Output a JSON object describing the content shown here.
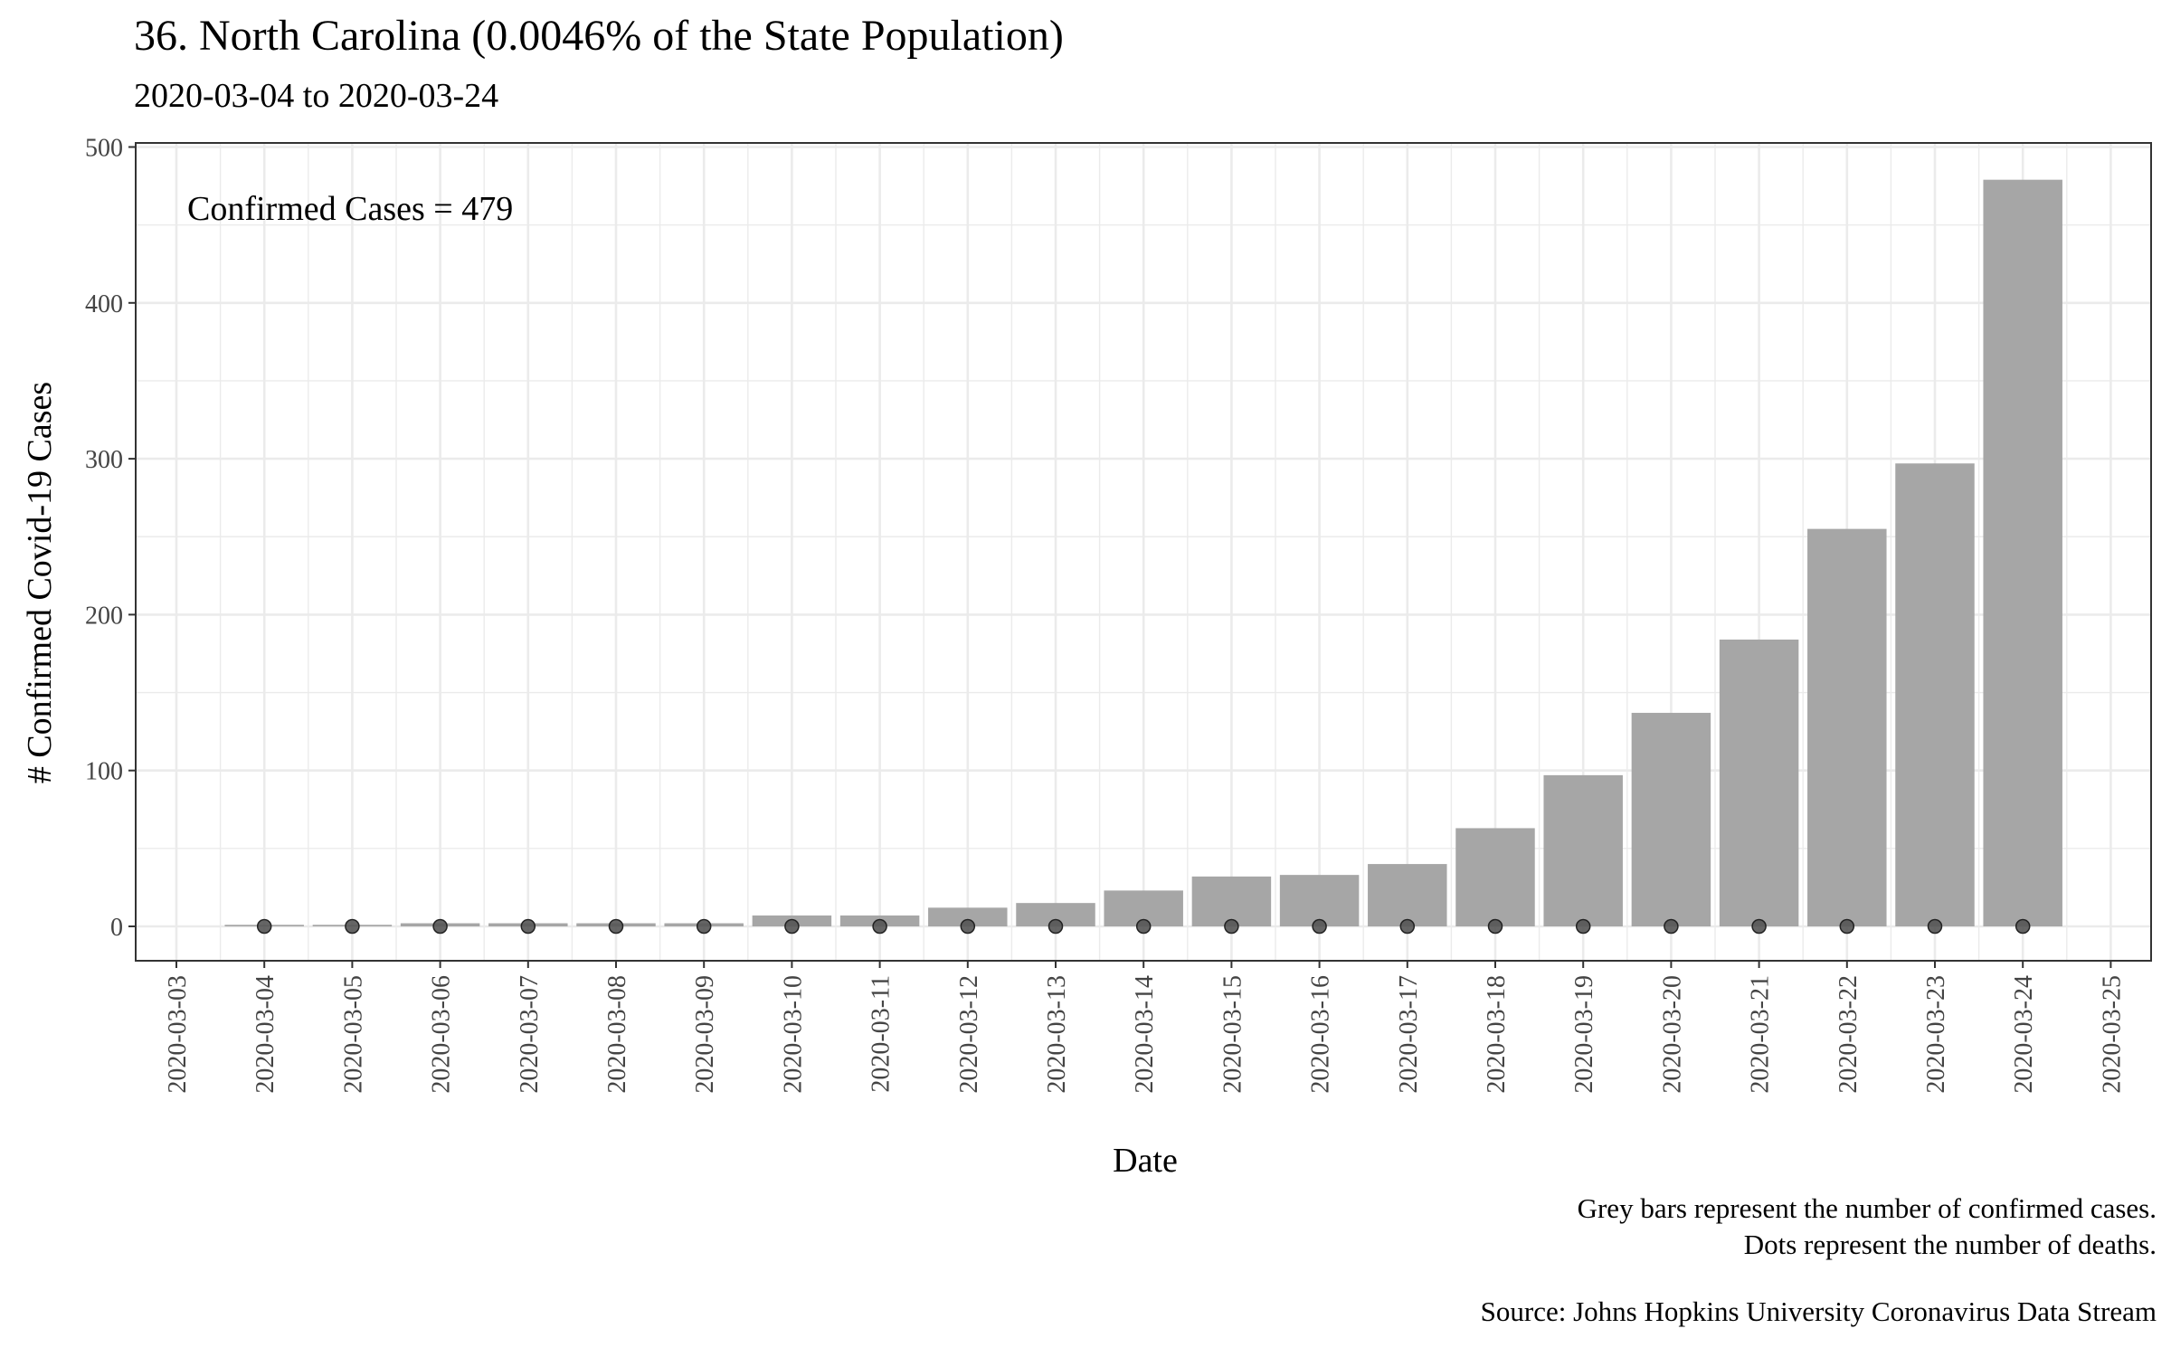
{
  "chart_data": {
    "type": "bar",
    "title": "36. North Carolina (0.0046% of the State Population)",
    "subtitle": "2020-03-04 to 2020-03-24",
    "xlabel": "Date",
    "ylabel": "# Confirmed Covid-19 Cases",
    "annotation": "Confirmed Cases = 479",
    "ylim": [
      -22,
      500
    ],
    "yticks": [
      0,
      100,
      200,
      300,
      400,
      500
    ],
    "xticks": [
      "2020-03-03",
      "2020-03-04",
      "2020-03-05",
      "2020-03-06",
      "2020-03-07",
      "2020-03-08",
      "2020-03-09",
      "2020-03-10",
      "2020-03-11",
      "2020-03-12",
      "2020-03-13",
      "2020-03-14",
      "2020-03-15",
      "2020-03-16",
      "2020-03-17",
      "2020-03-18",
      "2020-03-19",
      "2020-03-20",
      "2020-03-21",
      "2020-03-22",
      "2020-03-23",
      "2020-03-24",
      "2020-03-25"
    ],
    "categories": [
      "2020-03-04",
      "2020-03-05",
      "2020-03-06",
      "2020-03-07",
      "2020-03-08",
      "2020-03-09",
      "2020-03-10",
      "2020-03-11",
      "2020-03-12",
      "2020-03-13",
      "2020-03-14",
      "2020-03-15",
      "2020-03-16",
      "2020-03-17",
      "2020-03-18",
      "2020-03-19",
      "2020-03-20",
      "2020-03-21",
      "2020-03-22",
      "2020-03-23",
      "2020-03-24"
    ],
    "series": [
      {
        "name": "confirmed cases",
        "type": "bar",
        "values": [
          1,
          1,
          2,
          2,
          2,
          2,
          7,
          7,
          12,
          15,
          23,
          32,
          33,
          40,
          63,
          97,
          137,
          184,
          255,
          297,
          479
        ]
      },
      {
        "name": "deaths",
        "type": "dot",
        "values": [
          0,
          0,
          0,
          0,
          0,
          0,
          0,
          0,
          0,
          0,
          0,
          0,
          0,
          0,
          0,
          0,
          0,
          0,
          0,
          0,
          0
        ]
      }
    ],
    "grid": true,
    "colors": {
      "bars": "#a6a6a6",
      "dots": "#555555",
      "grid": "#ebebeb",
      "panel_border": "#333333"
    }
  },
  "captions": {
    "line1": "Grey bars represent the number of confirmed cases.",
    "line2": "Dots represent the number of deaths.",
    "source": "Source: Johns Hopkins University Coronavirus Data Stream"
  }
}
